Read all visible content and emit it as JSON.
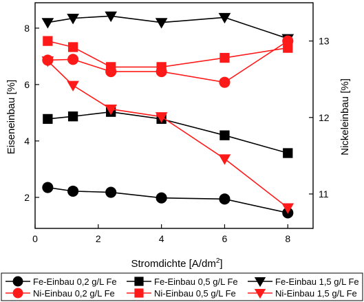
{
  "chart_data": {
    "type": "line",
    "title": "",
    "xlabel_main": "Stromdichte [A/dm",
    "xlabel_sup": "2",
    "xlabel_end": "]",
    "ylabel_left": "Eiseneinbau [%]",
    "ylabel_right": "Nickeleinbau [%]",
    "xlim": [
      0,
      8.8
    ],
    "ylim_left": [
      0.9,
      8.9
    ],
    "ylim_right": [
      10.55,
      13.5
    ],
    "x_ticks": [
      0,
      2,
      4,
      6,
      8
    ],
    "y_ticks_left": [
      2,
      4,
      6,
      8
    ],
    "y_ticks_right": [
      11,
      12,
      13
    ],
    "grid": false,
    "legend_position": "bottom",
    "series": [
      {
        "name": "Fe-Einbau 0,2 g/L Fe",
        "axis": "left",
        "color": "#000000",
        "marker": "circle",
        "x": [
          0.4,
          1.2,
          2.4,
          4.0,
          6.0,
          8.0
        ],
        "y": [
          2.35,
          2.22,
          2.18,
          1.98,
          1.94,
          1.45
        ]
      },
      {
        "name": "Fe-Einbau 0,5 g/L Fe",
        "axis": "left",
        "color": "#000000",
        "marker": "square",
        "x": [
          0.4,
          1.2,
          2.4,
          4.0,
          6.0,
          8.0
        ],
        "y": [
          4.78,
          4.87,
          5.03,
          4.78,
          4.2,
          3.57
        ]
      },
      {
        "name": "Fe-Einbau 1,5 g/L Fe",
        "axis": "left",
        "color": "#000000",
        "marker": "triangle-down",
        "x": [
          0.4,
          1.2,
          2.4,
          4.0,
          6.0,
          8.0
        ],
        "y": [
          8.2,
          8.35,
          8.43,
          8.2,
          8.38,
          7.63
        ]
      },
      {
        "name": "Ni-Einbau 0,2 g/L Fe",
        "axis": "right",
        "color": "#ff1a1a",
        "marker": "circle",
        "x": [
          0.4,
          1.2,
          2.4,
          4.0,
          6.0,
          8.0
        ],
        "y": [
          12.75,
          12.76,
          12.6,
          12.6,
          12.46,
          13.0
        ]
      },
      {
        "name": "Ni-Einbau 0,5 g/L Fe",
        "axis": "right",
        "color": "#ff1a1a",
        "marker": "square",
        "x": [
          0.4,
          1.2,
          2.4,
          4.0,
          6.0,
          8.0
        ],
        "y": [
          13.0,
          12.92,
          12.66,
          12.66,
          12.78,
          12.91
        ]
      },
      {
        "name": "Ni-Einbau 1,5 g/L Fe",
        "axis": "right",
        "color": "#ff1a1a",
        "marker": "triangle-down",
        "x": [
          0.4,
          1.2,
          2.4,
          4.0,
          6.0,
          8.0
        ],
        "y": [
          12.74,
          12.42,
          12.11,
          12.01,
          11.46,
          10.82
        ]
      }
    ]
  }
}
